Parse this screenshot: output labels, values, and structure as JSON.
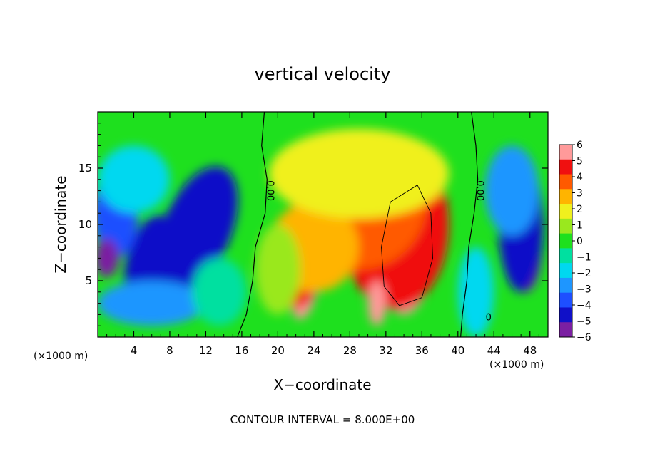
{
  "chart_data": {
    "type": "heatmap",
    "title": "vertical velocity",
    "xlabel": "X−coordinate",
    "ylabel": "Z−coordinate",
    "x_unit_left": "(×1000 m)",
    "x_unit_right": "(×1000 m)",
    "footer": "CONTOUR INTERVAL = 8.000E+00",
    "xlim": [
      0,
      50
    ],
    "ylim": [
      0,
      20
    ],
    "x_ticks": [
      4,
      8,
      12,
      16,
      20,
      24,
      28,
      32,
      36,
      40,
      44,
      48
    ],
    "x_tick_labels": [
      "4",
      "8",
      "12",
      "16",
      "20",
      "24",
      "28",
      "32",
      "36",
      "40",
      "44",
      "48"
    ],
    "y_ticks": [
      5,
      10,
      15
    ],
    "y_tick_labels": [
      "5",
      "10",
      "15"
    ],
    "colorbar": {
      "min": -6,
      "max": 6,
      "tick_labels": [
        "6",
        "5",
        "4",
        "3",
        "2",
        "1",
        "0",
        "−1",
        "−2",
        "−3",
        "−4",
        "−5",
        "−6"
      ],
      "colors": [
        {
          "v": -6,
          "c": "#7b1fa2"
        },
        {
          "v": -5,
          "c": "#1010c8"
        },
        {
          "v": -4,
          "c": "#1e4fff"
        },
        {
          "v": -3,
          "c": "#1e96ff"
        },
        {
          "v": -2,
          "c": "#00d8f0"
        },
        {
          "v": -1,
          "c": "#00e0a0"
        },
        {
          "v": 0,
          "c": "#1ee01e"
        },
        {
          "v": 1,
          "c": "#9ae81e"
        },
        {
          "v": 2,
          "c": "#f0f01e"
        },
        {
          "v": 3,
          "c": "#ffb400"
        },
        {
          "v": 4,
          "c": "#ff5a00"
        },
        {
          "v": 5,
          "c": "#f01010"
        },
        {
          "v": 6,
          "c": "#ff9a9a"
        }
      ]
    },
    "contour_labels": [
      {
        "text": "0.00",
        "x": 18.8,
        "y": 13.0
      },
      {
        "text": "0.00",
        "x": 42.1,
        "y": 13.0
      },
      {
        "text": "0",
        "x": 43.4,
        "y": 1.5
      }
    ],
    "features": [
      {
        "v": -6,
        "x": 9.5,
        "y": 9.0,
        "sx": 1.9,
        "sy": 4.0,
        "rot": 0.5
      },
      {
        "v": -5,
        "x": 11.0,
        "y": 9.5,
        "sx": 3.8,
        "sy": 6.0,
        "rot": 0.4
      },
      {
        "v": -5,
        "x": 5.5,
        "y": 7.0,
        "sx": 2.2,
        "sy": 4.0,
        "rot": 0.3
      },
      {
        "v": -4,
        "x": 2.0,
        "y": 11.0,
        "sx": 2.5,
        "sy": 4.0,
        "rot": 0.0
      },
      {
        "v": -6,
        "x": 1.0,
        "y": 7.0,
        "sx": 1.3,
        "sy": 1.7,
        "rot": 0.0
      },
      {
        "v": -3,
        "x": 6.0,
        "y": 3.0,
        "sx": 6.0,
        "sy": 2.0,
        "rot": 0.0
      },
      {
        "v": 6,
        "x": 34.0,
        "y": 8.0,
        "sx": 3.2,
        "sy": 6.0,
        "rot": 0.0
      },
      {
        "v": 5,
        "x": 33.0,
        "y": 10.0,
        "sx": 6.0,
        "sy": 7.5,
        "rot": 0.0
      },
      {
        "v": 4,
        "x": 29.0,
        "y": 12.0,
        "sx": 7.5,
        "sy": 6.0,
        "rot": 0.0
      },
      {
        "v": 6,
        "x": 25.5,
        "y": 13.0,
        "sx": 0.9,
        "sy": 1.8,
        "rot": 0.2
      },
      {
        "v": 6,
        "x": 23.0,
        "y": 3.5,
        "sx": 1.1,
        "sy": 2.0,
        "rot": 0.3
      },
      {
        "v": 5,
        "x": 22.0,
        "y": 5.0,
        "sx": 2.5,
        "sy": 2.5,
        "rot": 0.3
      },
      {
        "v": 6,
        "x": 31.0,
        "y": 3.0,
        "sx": 1.0,
        "sy": 2.0,
        "rot": 0.0
      },
      {
        "v": 3,
        "x": 24.0,
        "y": 8.0,
        "sx": 5.0,
        "sy": 4.0,
        "rot": 0.0
      },
      {
        "v": 2,
        "x": 29.0,
        "y": 14.5,
        "sx": 10.0,
        "sy": 4.0,
        "rot": 0.0
      },
      {
        "v": 1,
        "x": 20.0,
        "y": 6.0,
        "sx": 2.5,
        "sy": 4.0,
        "rot": 0.0
      },
      {
        "v": -6,
        "x": 47.5,
        "y": 8.0,
        "sx": 1.8,
        "sy": 4.0,
        "rot": 0.0
      },
      {
        "v": -5,
        "x": 47.0,
        "y": 10.0,
        "sx": 2.5,
        "sy": 6.0,
        "rot": 0.0
      },
      {
        "v": -3,
        "x": 46.0,
        "y": 13.0,
        "sx": 3.0,
        "sy": 4.0,
        "rot": 0.0
      },
      {
        "v": -2,
        "x": 4.0,
        "y": 14.0,
        "sx": 4.0,
        "sy": 3.0,
        "rot": 0.0
      },
      {
        "v": -1,
        "x": 13.5,
        "y": 4.0,
        "sx": 3.0,
        "sy": 3.0,
        "rot": 0.0
      },
      {
        "v": -2,
        "x": 42.0,
        "y": 4.0,
        "sx": 2.0,
        "sy": 4.0,
        "rot": 0.0
      }
    ]
  }
}
